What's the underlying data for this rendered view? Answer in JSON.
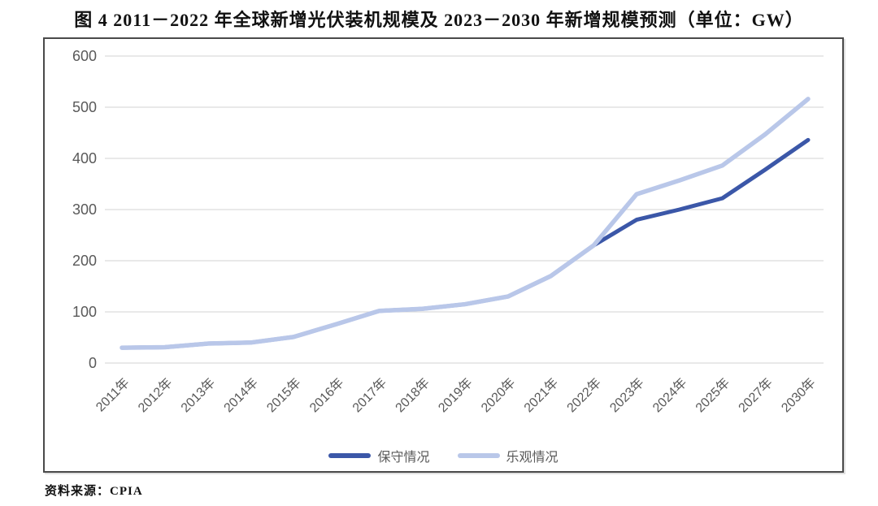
{
  "page": {
    "title": "图 4  2011－2022 年全球新增光伏装机规模及 2023－2030 年新增规模预测（单位：GW）",
    "source": "资料来源：CPIA"
  },
  "chart_data": {
    "type": "line",
    "title": "图 4  2011－2022 年全球新增光伏装机规模及 2023－2030 年新增规模预测",
    "unit": "GW",
    "xlabel": "",
    "ylabel": "",
    "ylim": [
      0,
      600
    ],
    "y_ticks": [
      0,
      100,
      200,
      300,
      400,
      500,
      600
    ],
    "grid": true,
    "legend_position": "bottom",
    "categories": [
      "2011年",
      "2012年",
      "2013年",
      "2014年",
      "2015年",
      "2016年",
      "2017年",
      "2018年",
      "2019年",
      "2020年",
      "2021年",
      "2022年",
      "2023年",
      "2024年",
      "2025年",
      "2027年",
      "2030年"
    ],
    "series": [
      {
        "name": "保守情况",
        "color": "#3B57A8",
        "values": [
          30,
          31,
          38,
          40,
          51,
          76,
          102,
          106,
          115,
          130,
          170,
          230,
          280,
          300,
          322,
          378,
          436
        ]
      },
      {
        "name": "乐观情况",
        "color": "#B9C7E9",
        "values": [
          30,
          31,
          38,
          40,
          51,
          76,
          102,
          106,
          115,
          130,
          170,
          230,
          330,
          357,
          386,
          447,
          516
        ]
      }
    ],
    "style": {
      "grid_color": "#dcdcdc",
      "tick_color": "#595959",
      "frame_color": "#4a4a4a"
    }
  }
}
